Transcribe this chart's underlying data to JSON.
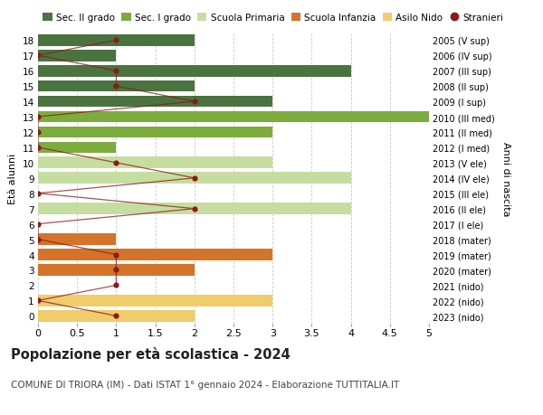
{
  "ages": [
    18,
    17,
    16,
    15,
    14,
    13,
    12,
    11,
    10,
    9,
    8,
    7,
    6,
    5,
    4,
    3,
    2,
    1,
    0
  ],
  "right_labels": [
    "2005 (V sup)",
    "2006 (IV sup)",
    "2007 (III sup)",
    "2008 (II sup)",
    "2009 (I sup)",
    "2010 (III med)",
    "2011 (II med)",
    "2012 (I med)",
    "2013 (V ele)",
    "2014 (IV ele)",
    "2015 (III ele)",
    "2016 (II ele)",
    "2017 (I ele)",
    "2018 (mater)",
    "2019 (mater)",
    "2020 (mater)",
    "2021 (nido)",
    "2022 (nido)",
    "2023 (nido)"
  ],
  "bar_values": [
    2,
    1,
    4,
    2,
    3,
    5,
    3,
    1,
    3,
    4,
    0,
    4,
    0,
    1,
    3,
    2,
    0,
    3,
    2
  ],
  "bar_colors": [
    "#4a7340",
    "#4a7340",
    "#4a7340",
    "#4a7340",
    "#4a7340",
    "#7dac3e",
    "#7dac3e",
    "#7dac3e",
    "#c5dea0",
    "#c5dea0",
    "#c5dea0",
    "#c5dea0",
    "#c5dea0",
    "#d4732a",
    "#d4732a",
    "#d4732a",
    "#f0cc6a",
    "#f0cc6a",
    "#f0cc6a"
  ],
  "stranieri_values": [
    1,
    0,
    1,
    1,
    2,
    0,
    0,
    0,
    1,
    2,
    0,
    2,
    0,
    0,
    1,
    1,
    1,
    0,
    1
  ],
  "stranieri_color": "#8b1a1a",
  "title": "Popolazione per età scolastica - 2024",
  "subtitle": "COMUNE DI TRIORA (IM) - Dati ISTAT 1° gennaio 2024 - Elaborazione TUTTITALIA.IT",
  "ylabel_left": "Età alunni",
  "ylabel_right": "Anni di nascita",
  "xlim": [
    0,
    5.0
  ],
  "xticks": [
    0,
    0.5,
    1.0,
    1.5,
    2.0,
    2.5,
    3.0,
    3.5,
    4.0,
    4.5,
    5.0
  ],
  "legend_labels": [
    "Sec. II grado",
    "Sec. I grado",
    "Scuola Primaria",
    "Scuola Infanzia",
    "Asilo Nido",
    "Stranieri"
  ],
  "legend_colors": [
    "#4a7340",
    "#7dac3e",
    "#c5dea0",
    "#d4732a",
    "#f0cc6a",
    "#8b1a1a"
  ],
  "bg_color": "#ffffff",
  "grid_color": "#cccccc"
}
